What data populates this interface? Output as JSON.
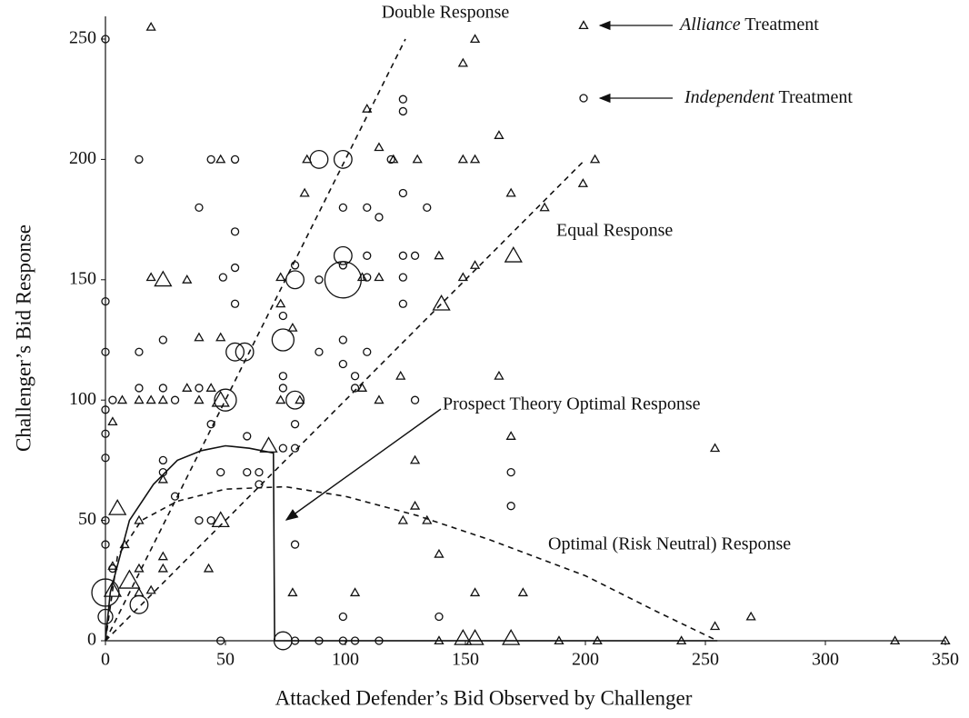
{
  "chart_data": {
    "type": "scatter",
    "xlabel": "Attacked Defender’s Bid Observed by Challenger",
    "ylabel": "Challenger’s Bid Response",
    "xlim": [
      0,
      350
    ],
    "ylim": [
      0,
      250
    ],
    "xticks": [
      0,
      50,
      100,
      150,
      200,
      250,
      300,
      350
    ],
    "yticks": [
      0,
      50,
      100,
      150,
      200,
      250
    ],
    "grid": false,
    "legend": "top-right",
    "series": [
      {
        "name": "Alliance Treatment",
        "marker": "triangle",
        "color": "#111111",
        "x": [
          19,
          154,
          149,
          109,
          164,
          114,
          48,
          84,
          120,
          130,
          149,
          154,
          204,
          199,
          83,
          169,
          183,
          19,
          24,
          34,
          73,
          107,
          114,
          139,
          149,
          154,
          170,
          140,
          73,
          39,
          48,
          78,
          3,
          7,
          14,
          19,
          24,
          34,
          44,
          39,
          48,
          73,
          81,
          107,
          114,
          123,
          164,
          169,
          129,
          24,
          14,
          48,
          124,
          134,
          129,
          43,
          24,
          24,
          3,
          14,
          8,
          10,
          14,
          19,
          78,
          104,
          139,
          154,
          174,
          139,
          149,
          154,
          169,
          189,
          205,
          240,
          329,
          350,
          254,
          269,
          254,
          68,
          3,
          5
        ],
        "values": [
          255,
          250,
          240,
          221,
          210,
          205,
          200,
          200,
          200,
          200,
          200,
          200,
          200,
          190,
          186,
          186,
          180,
          151,
          150,
          150,
          151,
          151,
          151,
          160,
          151,
          156,
          160,
          140,
          140,
          126,
          126,
          130,
          91,
          100,
          100,
          100,
          100,
          105,
          105,
          100,
          100,
          100,
          100,
          105,
          100,
          110,
          110,
          85,
          75,
          67,
          50,
          50,
          50,
          50,
          56,
          30,
          30,
          35,
          31,
          30,
          40,
          25,
          20,
          21,
          20,
          20,
          36,
          20,
          20,
          0,
          1,
          1,
          1,
          0,
          0,
          0,
          0,
          0,
          6,
          10,
          80,
          81,
          21,
          55
        ],
        "sizes": [
          1,
          1,
          1,
          1,
          1,
          1,
          1,
          1,
          1,
          1,
          1,
          1,
          1,
          1,
          1,
          1,
          1,
          1,
          4,
          1,
          1,
          1,
          1,
          1,
          1,
          1,
          4,
          4,
          1,
          1,
          1,
          1,
          1,
          1,
          1,
          1,
          1,
          1,
          1,
          1,
          4,
          1,
          1,
          1,
          1,
          1,
          1,
          1,
          1,
          1,
          1,
          4,
          1,
          1,
          1,
          1,
          1,
          1,
          1,
          1,
          1,
          6,
          1,
          1,
          1,
          1,
          1,
          1,
          1,
          1,
          4,
          4,
          4,
          1,
          1,
          1,
          1,
          1,
          1,
          1,
          1,
          4,
          4,
          4
        ]
      },
      {
        "name": "Independent Treatment",
        "marker": "circle",
        "color": "#111111",
        "x": [
          0,
          124,
          124,
          14,
          44,
          54,
          89,
          99,
          119,
          99,
          39,
          109,
          114,
          124,
          134,
          54,
          54,
          49,
          54,
          79,
          79,
          89,
          99,
          99,
          99,
          109,
          109,
          124,
          124,
          129,
          124,
          0,
          0,
          0,
          0,
          0,
          0,
          0,
          0,
          14,
          24,
          3,
          14,
          24,
          29,
          39,
          50,
          44,
          54,
          58,
          74,
          74,
          74,
          74,
          79,
          89,
          99,
          99,
          104,
          109,
          104,
          129,
          24,
          24,
          29,
          39,
          44,
          48,
          59,
          59,
          64,
          64,
          74,
          79,
          79,
          79,
          14,
          3,
          48,
          74,
          79,
          89,
          99,
          104,
          114,
          139,
          99,
          169,
          169,
          0
        ],
        "values": [
          250,
          225,
          220,
          200,
          200,
          200,
          200,
          200,
          200,
          180,
          180,
          180,
          176,
          186,
          180,
          170,
          155,
          151,
          140,
          156,
          150,
          150,
          160,
          156,
          150,
          160,
          151,
          160,
          151,
          160,
          140,
          141,
          120,
          96,
          86,
          76,
          50,
          40,
          20,
          120,
          125,
          100,
          105,
          105,
          100,
          105,
          100,
          90,
          120,
          120,
          125,
          135,
          110,
          105,
          100,
          120,
          125,
          115,
          110,
          120,
          105,
          100,
          75,
          70,
          60,
          50,
          50,
          70,
          85,
          70,
          70,
          65,
          80,
          80,
          90,
          40,
          15,
          30,
          0,
          0,
          0,
          0,
          0,
          0,
          0,
          10,
          10,
          70,
          56,
          10
        ],
        "sizes": [
          1,
          1,
          1,
          1,
          1,
          1,
          6,
          6,
          1,
          1,
          1,
          1,
          1,
          1,
          1,
          1,
          1,
          1,
          1,
          1,
          6,
          1,
          6,
          1,
          25,
          1,
          1,
          1,
          1,
          1,
          1,
          1,
          1,
          1,
          1,
          1,
          1,
          1,
          14,
          1,
          1,
          1,
          1,
          1,
          1,
          1,
          9,
          1,
          6,
          6,
          9,
          1,
          1,
          1,
          6,
          1,
          1,
          1,
          1,
          1,
          1,
          1,
          1,
          1,
          1,
          1,
          1,
          1,
          1,
          1,
          1,
          1,
          1,
          1,
          1,
          1,
          6,
          1,
          1,
          6,
          1,
          1,
          1,
          1,
          1,
          1,
          1,
          1,
          1,
          4
        ]
      }
    ],
    "lines": [
      {
        "name": "Double Response",
        "style": "dashed",
        "x": [
          0,
          125
        ],
        "y": [
          0,
          250
        ]
      },
      {
        "name": "Equal Response",
        "style": "dashed",
        "x": [
          0,
          200
        ],
        "y": [
          0,
          200
        ]
      },
      {
        "name": "Prospect Theory Optimal Response",
        "style": "solid",
        "x": [
          0,
          2,
          10,
          20,
          30,
          40,
          50,
          60,
          70,
          70.5,
          255
        ],
        "y": [
          0,
          20,
          50,
          65,
          75,
          79,
          81,
          80,
          78,
          0,
          0
        ]
      },
      {
        "name": "Optimal (Risk Neutral) Response",
        "style": "dashed",
        "x": [
          0,
          5,
          15,
          30,
          50,
          75,
          100,
          130,
          160,
          200,
          230,
          255
        ],
        "y": [
          0,
          35,
          50,
          58,
          63,
          64,
          60,
          52,
          42,
          27,
          12,
          0
        ]
      }
    ]
  }
}
